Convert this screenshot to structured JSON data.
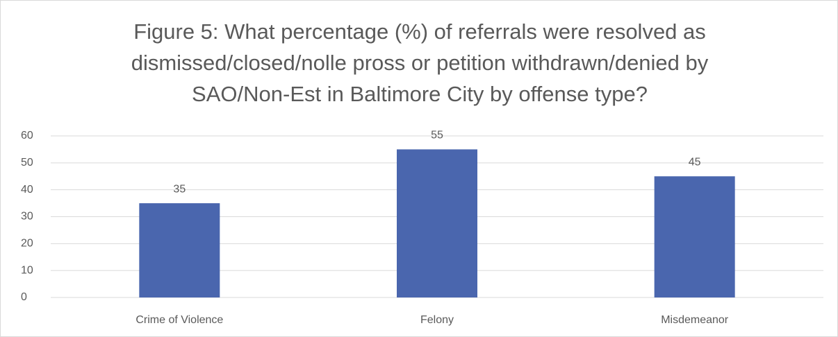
{
  "chart_data": {
    "type": "bar",
    "title": "Figure 5: What percentage (%) of referrals were resolved as dismissed/closed/nolle pross or petition withdrawn/denied by SAO/Non-Est in Baltimore City by offense type?",
    "categories": [
      "Crime of Violence",
      "Felony",
      "Misdemeanor"
    ],
    "values": [
      35,
      55,
      45
    ],
    "color": "#4a66ae",
    "ylim": [
      0,
      60
    ],
    "yticks": [
      0,
      10,
      20,
      30,
      40,
      50,
      60
    ],
    "grid": true
  }
}
